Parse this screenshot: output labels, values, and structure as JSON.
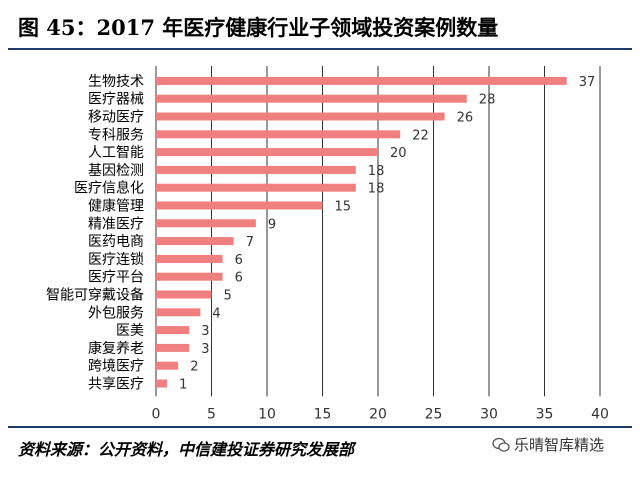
{
  "figure": {
    "title": "图 45：2017 年医疗健康行业子领域投资案例数量",
    "source": "资料来源：公开资料，中信建投证券研究发展部",
    "watermark": "乐晴智库精选"
  },
  "colors": {
    "bar": "#f08080",
    "grid": "#333333",
    "rule": "#1f3a6b"
  },
  "chart_data": {
    "type": "bar",
    "orientation": "horizontal",
    "title": "",
    "xlabel": "",
    "ylabel": "",
    "xlim": [
      0,
      40
    ],
    "xticks": [
      "0",
      "5",
      "10",
      "15",
      "20",
      "25",
      "30",
      "35",
      "40"
    ],
    "grid": true,
    "categories": [
      "生物技术",
      "医疗器械",
      "移动医疗",
      "专科服务",
      "人工智能",
      "基因检测",
      "医疗信息化",
      "健康管理",
      "精准医疗",
      "医药电商",
      "医疗连锁",
      "医疗平台",
      "智能可穿戴设备",
      "外包服务",
      "医美",
      "康复养老",
      "跨境医疗",
      "共享医疗"
    ],
    "values": [
      37,
      28,
      26,
      22,
      20,
      18,
      18,
      15,
      9,
      7,
      6,
      6,
      5,
      4,
      3,
      3,
      2,
      1
    ],
    "value_labels": [
      "37",
      "28",
      "26",
      "22",
      "20",
      "18",
      "18",
      "15",
      "9",
      "7",
      "6",
      "6",
      "5",
      "4",
      "3",
      "3",
      "2",
      "1"
    ]
  }
}
